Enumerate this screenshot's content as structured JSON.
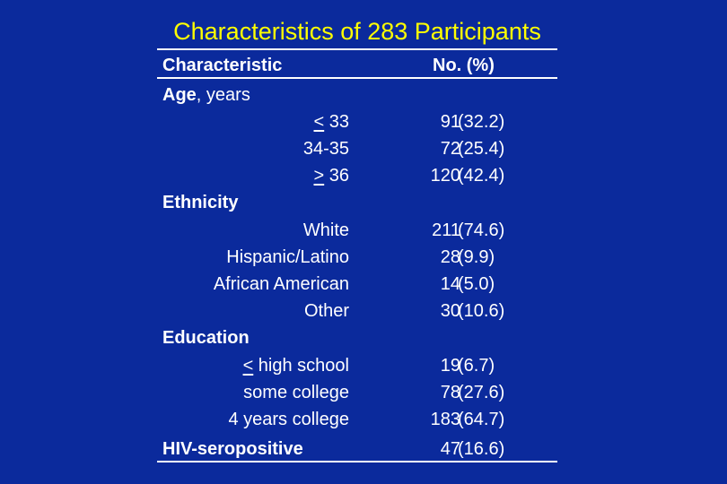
{
  "title": "Characteristics of 283 Participants",
  "header": {
    "col1": "Characteristic",
    "col2": "No. (%)"
  },
  "age": {
    "label": "Age",
    "unit": ", years",
    "rows": [
      {
        "symbol": "<",
        "label": " 33",
        "n": "91",
        "pct": "(32.2)"
      },
      {
        "label": "34-35",
        "n": "72",
        "pct": "(25.4)"
      },
      {
        "symbol": ">",
        "label": " 36",
        "n": "120",
        "pct": "(42.4)"
      }
    ]
  },
  "ethnicity": {
    "label": "Ethnicity",
    "rows": [
      {
        "label": "White",
        "n": "211",
        "pct": "(74.6)"
      },
      {
        "label": "Hispanic/Latino",
        "n": "28",
        "pct": "(9.9)"
      },
      {
        "label": "African American",
        "n": "14",
        "pct": "(5.0)"
      },
      {
        "label": "Other",
        "n": "30",
        "pct": "(10.6)"
      }
    ]
  },
  "education": {
    "label": "Education",
    "rows": [
      {
        "symbol": "<",
        "label": " high school",
        "n": "19",
        "pct": "(6.7)"
      },
      {
        "label": "some college",
        "n": "78",
        "pct": "(27.6)"
      },
      {
        "label": "4 years college",
        "n": "183",
        "pct": "(64.7)"
      }
    ]
  },
  "hiv": {
    "label": "HIV-seropositive",
    "n": "47",
    "pct": "(16.6)"
  },
  "colors": {
    "background": "#0b2a9c",
    "title": "#ffff00",
    "text": "#ffffff"
  }
}
